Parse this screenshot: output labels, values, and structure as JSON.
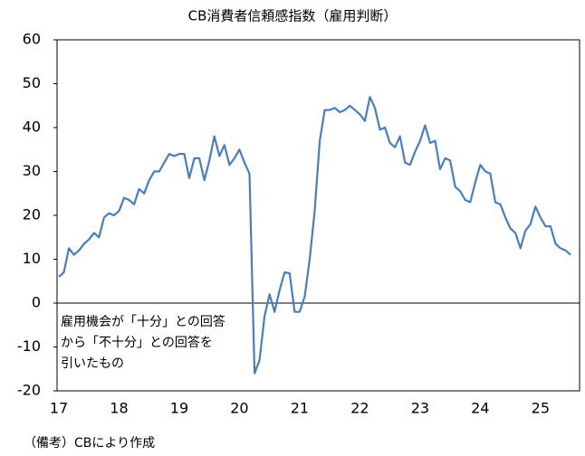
{
  "chart_data": {
    "type": "line",
    "title": "CB消費者信頼感指数（雇用判断）",
    "categories": [
      "17",
      null,
      null,
      null,
      null,
      null,
      null,
      null,
      null,
      null,
      null,
      null,
      "18",
      null,
      null,
      null,
      null,
      null,
      null,
      null,
      null,
      null,
      null,
      null,
      "19",
      null,
      null,
      null,
      null,
      null,
      null,
      null,
      null,
      null,
      null,
      null,
      "20",
      null,
      null,
      null,
      null,
      null,
      null,
      null,
      null,
      null,
      null,
      null,
      "21",
      null,
      null,
      null,
      null,
      null,
      null,
      null,
      null,
      null,
      null,
      null,
      "22",
      null,
      null,
      null,
      null,
      null,
      null,
      null,
      null,
      null,
      null,
      null,
      "23",
      null,
      null,
      null,
      null,
      null,
      null,
      null,
      null,
      null,
      null,
      null,
      "24",
      null,
      null,
      null,
      null,
      null,
      null,
      null,
      null,
      null,
      null,
      null,
      "25",
      null,
      null,
      null,
      null,
      null,
      null
    ],
    "values": [
      6,
      7,
      12.5,
      11,
      12,
      13.5,
      14.5,
      16,
      15,
      19.5,
      20.5,
      20,
      21,
      24,
      23.5,
      22.5,
      26,
      25,
      28,
      30,
      30,
      32,
      34,
      33.5,
      34,
      34,
      28.5,
      33,
      33,
      28,
      32.5,
      38,
      33.5,
      36,
      31.5,
      33,
      35,
      32,
      29.5,
      -16,
      -13,
      -3,
      2,
      -2,
      3,
      7,
      6.8,
      -2,
      -2,
      1.5,
      10,
      21,
      37,
      44,
      44,
      44.5,
      43.5,
      44,
      45,
      44,
      43,
      41.5,
      47,
      44.5,
      39.5,
      40,
      36.5,
      35.5,
      38,
      32,
      31.5,
      34.5,
      37,
      40.5,
      36.5,
      37,
      30.5,
      33,
      32.5,
      26.5,
      25.5,
      23.5,
      23,
      27.5,
      31.5,
      30,
      29.5,
      23,
      22.5,
      19.5,
      17,
      16,
      12.5,
      16.5,
      18,
      22,
      19.5,
      17.5,
      17.5,
      13.5,
      12.5,
      12,
      11
    ],
    "color": "#4a7ebb",
    "ylim": [
      -20,
      60
    ],
    "yticks": [
      -20,
      -10,
      0,
      10,
      20,
      30,
      40,
      50,
      60
    ],
    "annotation": [
      "雇用機会が「十分」との回答",
      "から「不十分」との回答を",
      "引いたもの"
    ],
    "source": "（備考）CBにより作成"
  }
}
